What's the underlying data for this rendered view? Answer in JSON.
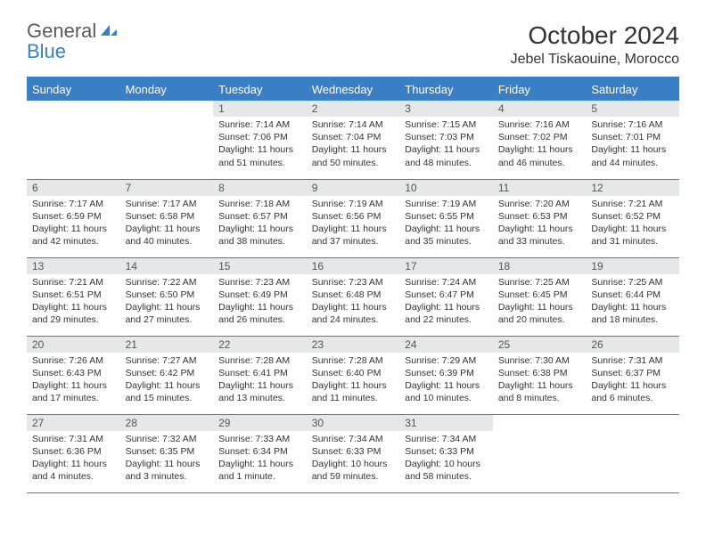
{
  "brand": {
    "part1": "General",
    "part2": "Blue"
  },
  "title": "October 2024",
  "location": "Jebel Tiskaouine, Morocco",
  "colors": {
    "accent": "#3a7fc4",
    "daybar": "#e6e7e8",
    "text": "#333333",
    "bg": "#ffffff"
  },
  "dayNames": [
    "Sunday",
    "Monday",
    "Tuesday",
    "Wednesday",
    "Thursday",
    "Friday",
    "Saturday"
  ],
  "days": [
    {
      "n": 1,
      "sunrise": "7:14 AM",
      "sunset": "7:06 PM",
      "daylight": "11 hours and 51 minutes."
    },
    {
      "n": 2,
      "sunrise": "7:14 AM",
      "sunset": "7:04 PM",
      "daylight": "11 hours and 50 minutes."
    },
    {
      "n": 3,
      "sunrise": "7:15 AM",
      "sunset": "7:03 PM",
      "daylight": "11 hours and 48 minutes."
    },
    {
      "n": 4,
      "sunrise": "7:16 AM",
      "sunset": "7:02 PM",
      "daylight": "11 hours and 46 minutes."
    },
    {
      "n": 5,
      "sunrise": "7:16 AM",
      "sunset": "7:01 PM",
      "daylight": "11 hours and 44 minutes."
    },
    {
      "n": 6,
      "sunrise": "7:17 AM",
      "sunset": "6:59 PM",
      "daylight": "11 hours and 42 minutes."
    },
    {
      "n": 7,
      "sunrise": "7:17 AM",
      "sunset": "6:58 PM",
      "daylight": "11 hours and 40 minutes."
    },
    {
      "n": 8,
      "sunrise": "7:18 AM",
      "sunset": "6:57 PM",
      "daylight": "11 hours and 38 minutes."
    },
    {
      "n": 9,
      "sunrise": "7:19 AM",
      "sunset": "6:56 PM",
      "daylight": "11 hours and 37 minutes."
    },
    {
      "n": 10,
      "sunrise": "7:19 AM",
      "sunset": "6:55 PM",
      "daylight": "11 hours and 35 minutes."
    },
    {
      "n": 11,
      "sunrise": "7:20 AM",
      "sunset": "6:53 PM",
      "daylight": "11 hours and 33 minutes."
    },
    {
      "n": 12,
      "sunrise": "7:21 AM",
      "sunset": "6:52 PM",
      "daylight": "11 hours and 31 minutes."
    },
    {
      "n": 13,
      "sunrise": "7:21 AM",
      "sunset": "6:51 PM",
      "daylight": "11 hours and 29 minutes."
    },
    {
      "n": 14,
      "sunrise": "7:22 AM",
      "sunset": "6:50 PM",
      "daylight": "11 hours and 27 minutes."
    },
    {
      "n": 15,
      "sunrise": "7:23 AM",
      "sunset": "6:49 PM",
      "daylight": "11 hours and 26 minutes."
    },
    {
      "n": 16,
      "sunrise": "7:23 AM",
      "sunset": "6:48 PM",
      "daylight": "11 hours and 24 minutes."
    },
    {
      "n": 17,
      "sunrise": "7:24 AM",
      "sunset": "6:47 PM",
      "daylight": "11 hours and 22 minutes."
    },
    {
      "n": 18,
      "sunrise": "7:25 AM",
      "sunset": "6:45 PM",
      "daylight": "11 hours and 20 minutes."
    },
    {
      "n": 19,
      "sunrise": "7:25 AM",
      "sunset": "6:44 PM",
      "daylight": "11 hours and 18 minutes."
    },
    {
      "n": 20,
      "sunrise": "7:26 AM",
      "sunset": "6:43 PM",
      "daylight": "11 hours and 17 minutes."
    },
    {
      "n": 21,
      "sunrise": "7:27 AM",
      "sunset": "6:42 PM",
      "daylight": "11 hours and 15 minutes."
    },
    {
      "n": 22,
      "sunrise": "7:28 AM",
      "sunset": "6:41 PM",
      "daylight": "11 hours and 13 minutes."
    },
    {
      "n": 23,
      "sunrise": "7:28 AM",
      "sunset": "6:40 PM",
      "daylight": "11 hours and 11 minutes."
    },
    {
      "n": 24,
      "sunrise": "7:29 AM",
      "sunset": "6:39 PM",
      "daylight": "11 hours and 10 minutes."
    },
    {
      "n": 25,
      "sunrise": "7:30 AM",
      "sunset": "6:38 PM",
      "daylight": "11 hours and 8 minutes."
    },
    {
      "n": 26,
      "sunrise": "7:31 AM",
      "sunset": "6:37 PM",
      "daylight": "11 hours and 6 minutes."
    },
    {
      "n": 27,
      "sunrise": "7:31 AM",
      "sunset": "6:36 PM",
      "daylight": "11 hours and 4 minutes."
    },
    {
      "n": 28,
      "sunrise": "7:32 AM",
      "sunset": "6:35 PM",
      "daylight": "11 hours and 3 minutes."
    },
    {
      "n": 29,
      "sunrise": "7:33 AM",
      "sunset": "6:34 PM",
      "daylight": "11 hours and 1 minute."
    },
    {
      "n": 30,
      "sunrise": "7:34 AM",
      "sunset": "6:33 PM",
      "daylight": "10 hours and 59 minutes."
    },
    {
      "n": 31,
      "sunrise": "7:34 AM",
      "sunset": "6:33 PM",
      "daylight": "10 hours and 58 minutes."
    }
  ],
  "labels": {
    "sunrise": "Sunrise: ",
    "sunset": "Sunset: ",
    "daylight": "Daylight: "
  },
  "startOffset": 2
}
